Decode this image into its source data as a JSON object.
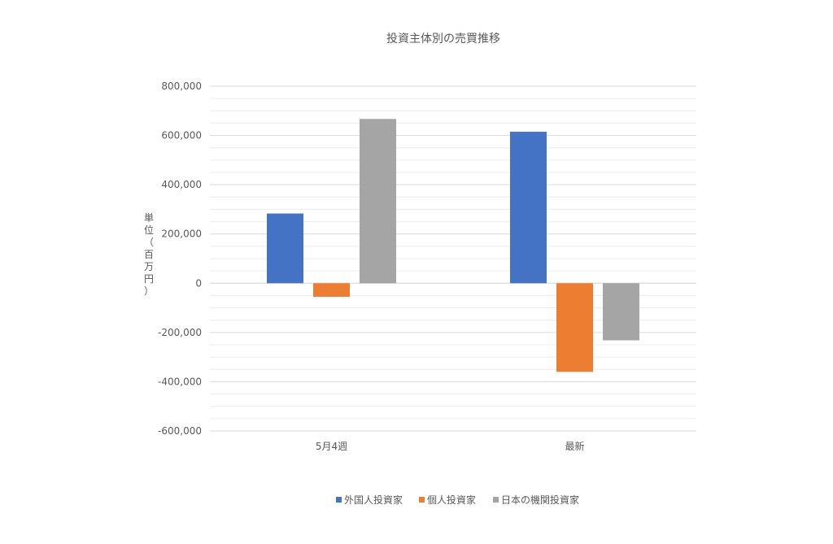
{
  "chart_data": {
    "type": "bar",
    "title": "投資主体別の売買推移",
    "ylabel": "単位（百万円）",
    "xlabel": "",
    "categories": [
      "5月4週",
      "最新"
    ],
    "series": [
      {
        "name": "外国人投資家",
        "color": "#4472C4",
        "values": [
          283000,
          615000
        ]
      },
      {
        "name": "個人投資家",
        "color": "#ED7D31",
        "values": [
          -55000,
          -360000
        ]
      },
      {
        "name": "日本の機関投資家",
        "color": "#A5A5A5",
        "values": [
          667000,
          -232000
        ]
      }
    ],
    "ylim": [
      -600000,
      800000
    ],
    "yticks": [
      800000,
      600000,
      400000,
      200000,
      0,
      -200000,
      -400000,
      -600000
    ],
    "ytick_labels": [
      "800,000",
      "600,000",
      "400,000",
      "200,000",
      "0",
      "-200,000",
      "-400,000",
      "-600,000"
    ],
    "grid": true,
    "legend_position": "bottom"
  }
}
